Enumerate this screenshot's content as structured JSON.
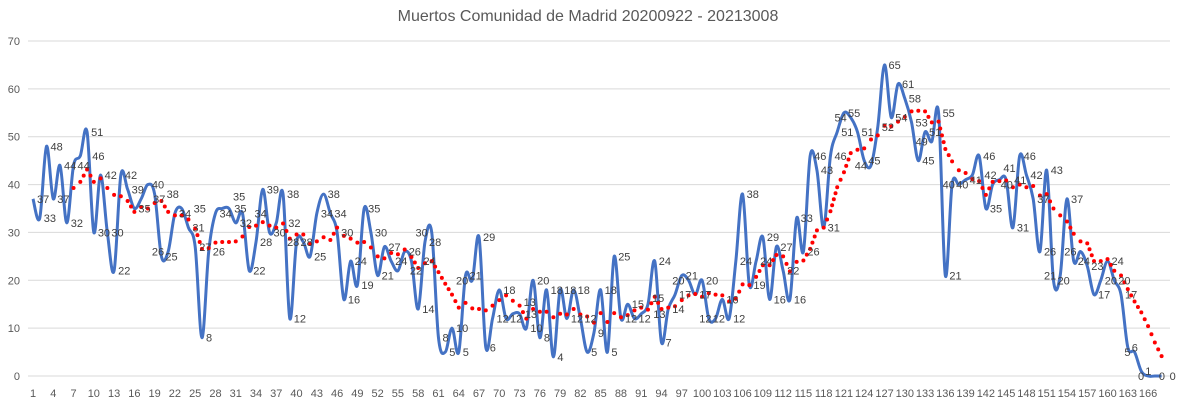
{
  "chart_data": {
    "type": "line",
    "title": "Muertos Comunidad de Madrid 20200922 - 20213008",
    "xlabel": "",
    "ylabel": "",
    "ylim": [
      0,
      70
    ],
    "yticks": [
      0,
      10,
      20,
      30,
      40,
      50,
      60,
      70
    ],
    "x_tick_step": 3,
    "x_tick_last": 166,
    "grid": true,
    "smoothed": true,
    "data_labels": true,
    "series": [
      {
        "color": "#4472C4",
        "values": [
          37,
          33,
          48,
          37,
          44,
          32,
          44,
          46,
          51,
          30,
          42,
          30,
          22,
          42,
          39,
          35,
          37,
          40,
          38,
          25,
          26,
          34,
          35,
          31,
          27,
          8,
          26,
          34,
          35,
          35,
          32,
          34,
          22,
          28,
          39,
          30,
          32,
          38,
          12,
          28,
          28,
          25,
          34,
          38,
          34,
          30,
          16,
          24,
          19,
          35,
          30,
          21,
          27,
          24,
          22,
          26,
          24,
          14,
          28,
          30,
          8,
          5,
          10,
          5,
          21,
          20,
          29,
          6,
          12,
          18,
          12,
          13,
          13,
          10,
          20,
          8,
          18,
          4,
          18,
          12,
          18,
          12,
          5,
          9,
          18,
          5,
          25,
          12,
          15,
          12,
          13,
          15,
          24,
          7,
          14,
          17,
          21,
          20,
          17,
          20,
          12,
          12,
          16,
          12,
          24,
          38,
          19,
          24,
          29,
          16,
          27,
          22,
          16,
          33,
          26,
          46,
          43,
          31,
          46,
          51,
          55,
          54,
          51,
          45,
          44,
          52,
          65,
          54,
          61,
          58,
          53,
          45,
          51,
          49,
          55,
          21,
          40,
          40,
          41,
          42,
          46,
          35,
          40,
          41,
          41,
          31,
          46,
          42,
          37,
          26,
          43,
          20,
          21,
          37,
          24,
          26,
          23,
          17,
          20,
          24,
          20,
          17,
          6,
          5,
          1,
          0,
          0,
          0
        ]
      }
    ],
    "trendline": {
      "type": "moving_average",
      "period": 7,
      "color": "#FF0000",
      "style": "dotted"
    }
  }
}
